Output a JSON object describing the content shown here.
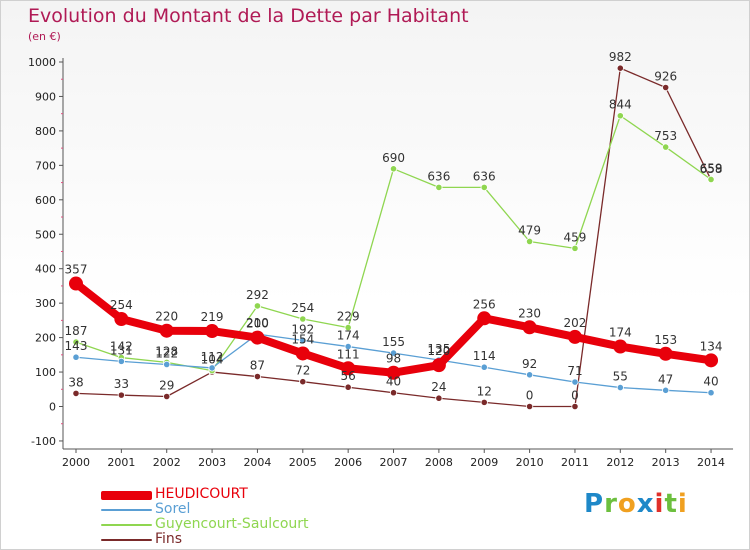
{
  "chart_data": {
    "type": "line",
    "title": "Evolution du Montant de la Dette par Habitant",
    "subtitle": "(en €)",
    "x": [
      "2000",
      "2001",
      "2002",
      "2003",
      "2004",
      "2005",
      "2006",
      "2007",
      "2008",
      "2009",
      "2010",
      "2011",
      "2012",
      "2013",
      "2014"
    ],
    "ylim": [
      -100,
      1000
    ],
    "yticks": [
      -100,
      0,
      100,
      200,
      300,
      400,
      500,
      600,
      700,
      800,
      900,
      1000
    ],
    "ytick_labels": [
      "-100",
      "0",
      "100",
      "200",
      "300",
      "400",
      "500",
      "600",
      "700",
      "800",
      "900",
      "1000"
    ],
    "grid": false,
    "legend_position": "bottom-left",
    "series": [
      {
        "name": "HEUDICOURT",
        "color": "#e8000b",
        "values": [
          357,
          254,
          220,
          219,
          200,
          154,
          111,
          98,
          120,
          256,
          230,
          202,
          174,
          153,
          134
        ],
        "labels": [
          "357",
          "254",
          "220",
          "219",
          "200",
          "154",
          "111",
          "98",
          "120",
          "256",
          "230",
          "202",
          "174",
          "153",
          "134"
        ]
      },
      {
        "name": "Sorel",
        "color": "#5a9fd4",
        "values": [
          143,
          131,
          122,
          112,
          210,
          192,
          174,
          155,
          135,
          114,
          92,
          71,
          55,
          47,
          40
        ],
        "labels": [
          "143",
          "131",
          "122",
          "112",
          "210",
          "192",
          "174",
          "155",
          "135",
          "114",
          "92",
          "71",
          "55",
          "47",
          "40"
        ]
      },
      {
        "name": "Guyencourt-Saulcourt",
        "color": "#8fd650",
        "values": [
          187,
          142,
          128,
          104,
          292,
          254,
          229,
          690,
          636,
          636,
          479,
          459,
          844,
          753,
          659
        ],
        "labels": [
          "187",
          "142",
          "128",
          "104",
          "292",
          "254",
          "229",
          "690",
          "636",
          "636",
          "479",
          "459",
          "844",
          "753",
          "659"
        ]
      },
      {
        "name": "Fins",
        "color": "#7a2a2a",
        "values": [
          38,
          33,
          29,
          100,
          87,
          72,
          56,
          40,
          24,
          12,
          0,
          0,
          982,
          926,
          658
        ],
        "labels": [
          "38",
          "33",
          "29",
          "",
          "87",
          "72",
          "56",
          "40",
          "24",
          "12",
          "0",
          "0",
          "982",
          "926",
          "658"
        ]
      }
    ]
  },
  "legend": {
    "items": [
      {
        "label": "HEUDICOURT",
        "color": "#e8000b"
      },
      {
        "label": "Sorel",
        "color": "#5a9fd4"
      },
      {
        "label": "Guyencourt-Saulcourt",
        "color": "#8fd650"
      },
      {
        "label": "Fins",
        "color": "#7a2a2a"
      }
    ]
  },
  "logo": {
    "letters": [
      "P",
      "r",
      "o",
      "x",
      "i",
      "t",
      "i"
    ],
    "colors": [
      "#1e88c8",
      "#6cbf3e",
      "#f0a020",
      "#1e88c8",
      "#e0302a",
      "#6cbf3e",
      "#f0a020"
    ]
  }
}
